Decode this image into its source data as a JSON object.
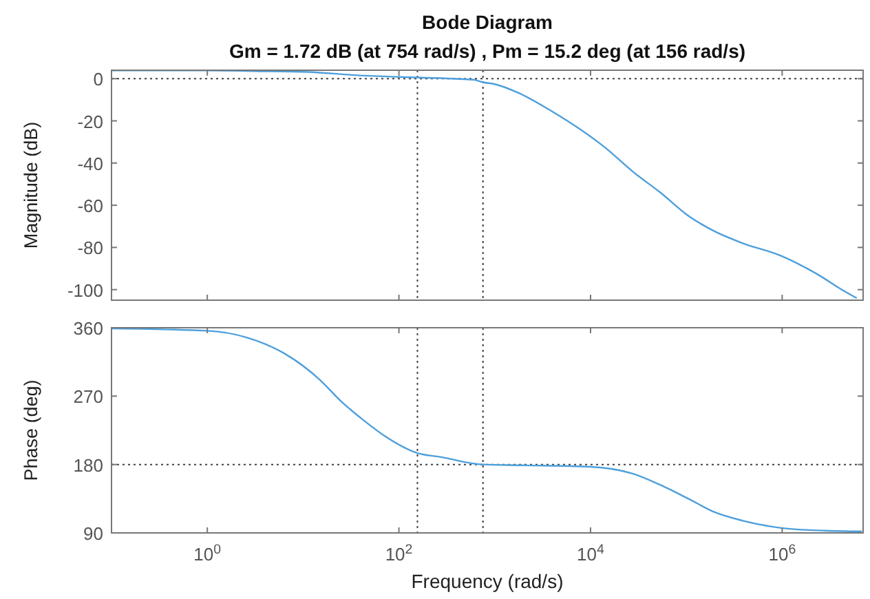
{
  "chart_data": [
    {
      "type": "line",
      "title": "Bode Diagram",
      "subtitle": "Gm = 1.72 dB (at 754 rad/s) ,  Pm = 15.2 deg (at 156 rad/s)",
      "ylabel": "Magnitude (dB)",
      "log": "x",
      "tick_labels": "y",
      "xlim": [
        0.1,
        7000000
      ],
      "xticks": [
        {
          "value": 1,
          "label": null
        },
        {
          "value": 100,
          "label": null
        },
        {
          "value": 10000,
          "label": null
        },
        {
          "value": 1000000,
          "label": null
        }
      ],
      "ylim": [
        -105,
        4
      ],
      "yticks": [
        -100,
        -80,
        -60,
        -40,
        -20,
        0
      ],
      "ref_lines": [
        {
          "axis": "y",
          "value": 0,
          "color": "#404040",
          "line_style": "dotted"
        },
        {
          "axis": "x",
          "value": 156,
          "color": "#404040",
          "line_style": "dotted"
        },
        {
          "axis": "x",
          "value": 754,
          "color": "#404040",
          "line_style": "dotted"
        }
      ],
      "series": [
        {
          "color": "#4d9fdc",
          "x": [
            0.1,
            1,
            3,
            11,
            37,
            100,
            600,
            754,
            1000,
            1820,
            3800,
            14500,
            27500,
            53700,
            105000,
            200000,
            389000,
            977000,
            2190000,
            4570000,
            6000000
          ],
          "values": [
            3.9,
            3.9,
            3.6,
            3.2,
            1.6,
            0.8,
            -0.5,
            -1.7,
            -2.6,
            -7,
            -15,
            -33,
            -44,
            -54,
            -65,
            -72.5,
            -78,
            -84,
            -92,
            -101,
            -104
          ]
        }
      ]
    },
    {
      "type": "line",
      "xlabel": "Frequency  (rad/s)",
      "ylabel": "Phase (deg)",
      "log": "x",
      "xlim": [
        0.1,
        7000000
      ],
      "xticks": [
        {
          "value": 1,
          "label": "10$^{0}$"
        },
        {
          "value": 100,
          "label": "10$^{2}$"
        },
        {
          "value": 10000,
          "label": "10$^{4}$"
        },
        {
          "value": 1000000,
          "label": "10$^{6}$"
        }
      ],
      "ylim": [
        90,
        360
      ],
      "yticks": [
        90,
        180,
        270,
        360
      ],
      "ref_lines": [
        {
          "axis": "y",
          "value": 180,
          "color": "#404040",
          "line_style": "dotted"
        },
        {
          "axis": "x",
          "value": 156,
          "color": "#404040",
          "line_style": "dotted"
        },
        {
          "axis": "x",
          "value": 754,
          "color": "#404040",
          "line_style": "dotted"
        }
      ],
      "series": [
        {
          "color": "#4d9fdc",
          "x": [
            0.1,
            1,
            2.6,
            6.6,
            14.8,
            25,
            43,
            72,
            156,
            270,
            754,
            1950,
            10000,
            27500,
            53700,
            105000,
            200000,
            389000,
            977000,
            2800000,
            6800000
          ],
          "values": [
            359,
            356,
            347,
            325,
            292,
            263,
            238,
            217,
            195,
            190,
            180,
            179,
            177,
            168,
            153,
            135,
            117,
            106,
            96.5,
            93,
            92
          ]
        }
      ]
    }
  ]
}
